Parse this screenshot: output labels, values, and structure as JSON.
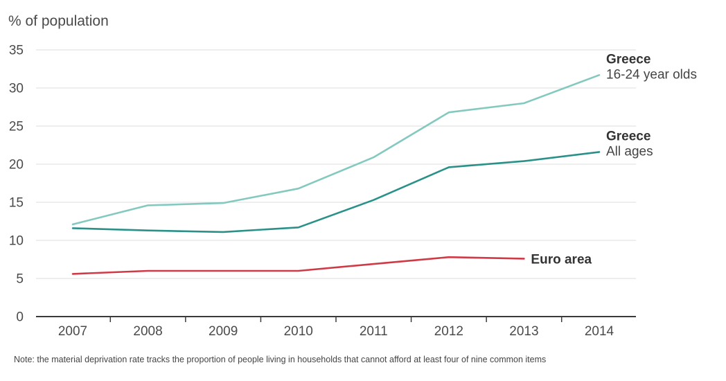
{
  "chart_data": {
    "type": "line",
    "ylabel": "% of population",
    "xlabel": "",
    "ylim": [
      0,
      35
    ],
    "yticks": [
      0,
      5,
      10,
      15,
      20,
      25,
      30,
      35
    ],
    "categories": [
      "2007",
      "2008",
      "2009",
      "2010",
      "2011",
      "2012",
      "2013",
      "2014"
    ],
    "grid": true,
    "series": [
      {
        "name": "Greece",
        "subtitle": "16-24 year olds",
        "color": "#84c9bf",
        "values": [
          12.1,
          14.6,
          14.9,
          16.8,
          20.9,
          26.8,
          28.0,
          31.7
        ]
      },
      {
        "name": "Greece",
        "subtitle": "All ages",
        "color": "#2a9189",
        "values": [
          11.6,
          11.3,
          11.1,
          11.7,
          15.3,
          19.6,
          20.4,
          21.6
        ]
      },
      {
        "name": "Euro area",
        "subtitle": "",
        "color": "#cf3a47",
        "values": [
          5.6,
          6.0,
          6.0,
          6.0,
          6.9,
          7.8,
          7.6,
          null
        ]
      }
    ],
    "note": "Note: the material deprivation rate tracks the proportion of people living in households that cannot afford at least four of nine common items"
  }
}
